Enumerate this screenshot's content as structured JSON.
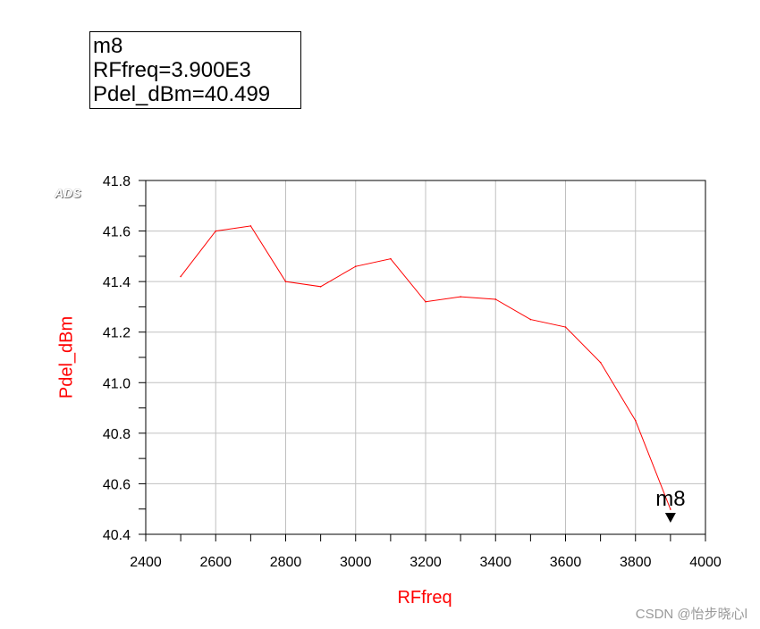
{
  "marker_box": {
    "name": "m8",
    "x_readout": "RFfreq=3.900E3",
    "y_readout": "Pdel_dBm=40.499"
  },
  "logo": "ADS",
  "watermark": "CSDN @怡步晓心l",
  "colors": {
    "series": "#ff0000",
    "grid": "#c0c0c0",
    "label": "#ff0000"
  },
  "chart_data": {
    "type": "line",
    "title": "",
    "xlabel": "RFfreq",
    "ylabel": "Pdel_dBm",
    "xlim": [
      2400,
      4000
    ],
    "ylim": [
      40.4,
      41.8
    ],
    "x_ticks": [
      "2400",
      "2600",
      "2800",
      "3000",
      "3200",
      "3400",
      "3600",
      "3800",
      "4000"
    ],
    "y_ticks": [
      "40.4",
      "40.6",
      "40.8",
      "41.0",
      "41.2",
      "41.4",
      "41.6",
      "41.8"
    ],
    "grid": true,
    "series": [
      {
        "x": [
          2500,
          2600,
          2700,
          2800,
          2900,
          3000,
          3100,
          3200,
          3300,
          3400,
          3500,
          3600,
          3700,
          3800,
          3900
        ],
        "y": [
          41.42,
          41.6,
          41.62,
          41.4,
          41.38,
          41.46,
          41.49,
          41.32,
          41.34,
          41.33,
          41.25,
          41.22,
          41.08,
          40.85,
          40.499
        ]
      }
    ],
    "marker": {
      "label": "m8",
      "x": 3900,
      "y": 40.499
    }
  }
}
